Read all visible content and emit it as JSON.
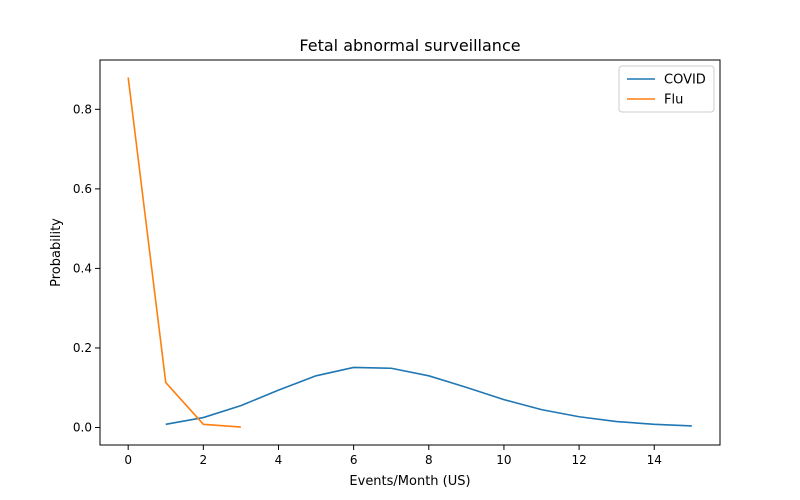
{
  "chart_data": {
    "type": "line",
    "title": "Fetal abnormal surveillance",
    "xlabel": "Events/Month (US)",
    "ylabel": "Probability",
    "xlim": [
      -0.75,
      15.75
    ],
    "ylim": [
      -0.044,
      0.924
    ],
    "xticks": [
      0,
      2,
      4,
      6,
      8,
      10,
      12,
      14
    ],
    "yticks": [
      0.0,
      0.2,
      0.4,
      0.6,
      0.8
    ],
    "grid": false,
    "legend_position": "top-right",
    "series": [
      {
        "name": "COVID",
        "color": "#1f77b4",
        "x": [
          1,
          2,
          3,
          4,
          5,
          6,
          7,
          8,
          9,
          10,
          11,
          12,
          13,
          14,
          15
        ],
        "y": [
          0.008,
          0.025,
          0.055,
          0.094,
          0.13,
          0.151,
          0.149,
          0.13,
          0.101,
          0.07,
          0.045,
          0.027,
          0.015,
          0.008,
          0.004
        ]
      },
      {
        "name": "Flu",
        "color": "#ff7f0e",
        "x": [
          0,
          1,
          2,
          3
        ],
        "y": [
          0.88,
          0.113,
          0.008,
          0.001
        ]
      }
    ]
  }
}
